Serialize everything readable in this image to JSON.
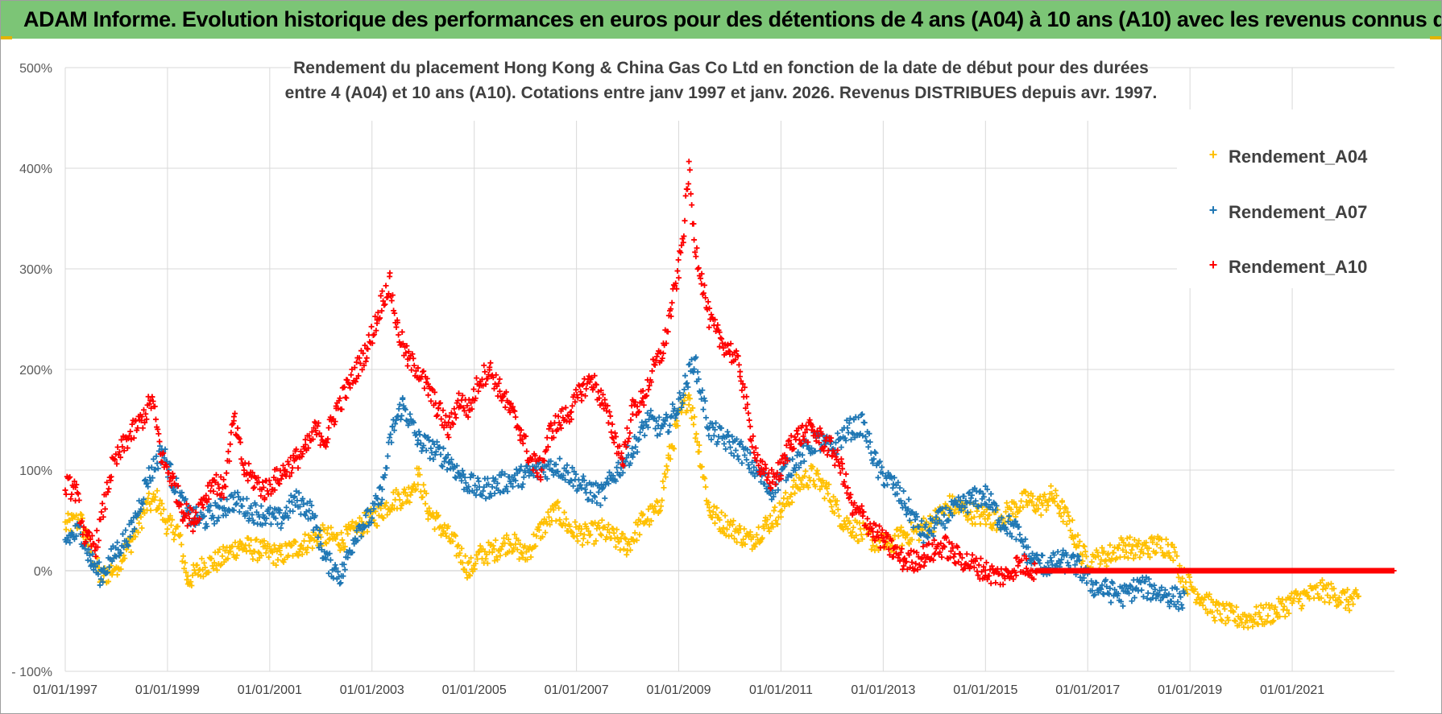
{
  "header": {
    "title": "ADAM Informe. Evolution historique des performances en euros pour des détentions de 4 ans (A04) à 10 ans (A10) avec les revenus connus distribués"
  },
  "chart_data": {
    "type": "scatter",
    "title_lines": [
      "Rendement du placement Hong Kong & China Gas Co Ltd en fonction de la date de début pour des durées",
      "entre 4 (A04) et 10 ans (A10). Cotations entre janv 1997 et janv. 2026. Revenus DISTRIBUES depuis avr. 1997."
    ],
    "xlabel": "",
    "ylabel": "",
    "xlim": [
      1997.0,
      2023.0
    ],
    "ylim": [
      -100,
      500
    ],
    "y_ticks": [
      {
        "value": 500,
        "label": "500%"
      },
      {
        "value": 400,
        "label": "400%"
      },
      {
        "value": 300,
        "label": "300%"
      },
      {
        "value": 200,
        "label": "200%"
      },
      {
        "value": 100,
        "label": "100%"
      },
      {
        "value": 0,
        "label": "0%"
      },
      {
        "value": -100,
        "label": "- 100%"
      }
    ],
    "x_ticks": [
      {
        "value": 1997,
        "label": "01/01/1997"
      },
      {
        "value": 1999,
        "label": "01/01/1999"
      },
      {
        "value": 2001,
        "label": "01/01/2001"
      },
      {
        "value": 2003,
        "label": "01/01/2003"
      },
      {
        "value": 2005,
        "label": "01/01/2005"
      },
      {
        "value": 2007,
        "label": "01/01/2007"
      },
      {
        "value": 2009,
        "label": "01/01/2009"
      },
      {
        "value": 2011,
        "label": "01/01/2011"
      },
      {
        "value": 2013,
        "label": "01/01/2013"
      },
      {
        "value": 2015,
        "label": "01/01/2015"
      },
      {
        "value": 2017,
        "label": "01/01/2017"
      },
      {
        "value": 2019,
        "label": "01/01/2019"
      },
      {
        "value": 2021,
        "label": "01/01/2021"
      }
    ],
    "grid": true,
    "legend_position": "top-right",
    "series": [
      {
        "name": "Rendement_A04",
        "color": "#ffc000",
        "x": [
          1997.0,
          1997.3,
          1997.5,
          1997.7,
          1998.0,
          1998.3,
          1998.6,
          1998.8,
          1999.0,
          1999.2,
          1999.4,
          1999.7,
          2000.0,
          2000.4,
          2000.8,
          2001.2,
          2001.6,
          2002.0,
          2002.4,
          2002.8,
          2003.1,
          2003.4,
          2003.7,
          2003.9,
          2004.1,
          2004.4,
          2004.7,
          2004.9,
          2005.1,
          2005.4,
          2005.7,
          2006.0,
          2006.3,
          2006.6,
          2006.9,
          2007.2,
          2007.5,
          2007.8,
          2008.0,
          2008.3,
          2008.6,
          2008.8,
          2009.0,
          2009.2,
          2009.4,
          2009.6,
          2009.8,
          2010.1,
          2010.4,
          2010.7,
          2011.0,
          2011.3,
          2011.6,
          2011.9,
          2012.2,
          2012.5,
          2012.8,
          2013.1,
          2013.4,
          2013.7,
          2014.0,
          2014.3,
          2014.6,
          2014.9,
          2015.2,
          2015.5,
          2015.8,
          2016.1,
          2016.3,
          2016.5,
          2016.7,
          2016.9,
          2017.1,
          2017.4,
          2017.7,
          2018.0,
          2018.3,
          2018.6,
          2018.9,
          2019.2,
          2019.5,
          2019.8,
          2020.1,
          2020.4,
          2020.7,
          2021.0,
          2021.3,
          2021.6,
          2021.9,
          2022.1,
          2022.3
        ],
        "y": [
          45,
          50,
          20,
          -8,
          5,
          30,
          65,
          70,
          45,
          40,
          -10,
          5,
          10,
          25,
          20,
          15,
          25,
          35,
          30,
          45,
          55,
          70,
          75,
          95,
          60,
          40,
          20,
          0,
          15,
          20,
          30,
          15,
          40,
          60,
          40,
          35,
          40,
          30,
          25,
          50,
          60,
          110,
          150,
          175,
          120,
          60,
          50,
          40,
          30,
          45,
          60,
          85,
          95,
          80,
          50,
          40,
          30,
          25,
          35,
          40,
          50,
          65,
          60,
          55,
          50,
          60,
          70,
          65,
          75,
          60,
          40,
          15,
          10,
          15,
          25,
          20,
          25,
          25,
          -10,
          -25,
          -40,
          -45,
          -48,
          -45,
          -40,
          -30,
          -25,
          -20,
          -25,
          -30,
          -30
        ]
      },
      {
        "name": "Rendement_A07",
        "color": "#1f77b4",
        "x": [
          1997.0,
          1997.3,
          1997.5,
          1997.7,
          1998.0,
          1998.3,
          1998.6,
          1998.9,
          1999.1,
          1999.4,
          1999.7,
          2000.0,
          2000.3,
          2000.6,
          2000.9,
          2001.2,
          2001.5,
          2001.8,
          2002.1,
          2002.4,
          2002.7,
          2003.0,
          2003.2,
          2003.4,
          2003.6,
          2003.9,
          2004.2,
          2004.5,
          2004.8,
          2005.1,
          2005.4,
          2005.7,
          2006.0,
          2006.3,
          2006.6,
          2006.9,
          2007.2,
          2007.5,
          2007.8,
          2008.1,
          2008.4,
          2008.7,
          2009.0,
          2009.3,
          2009.6,
          2009.9,
          2010.2,
          2010.5,
          2010.8,
          2011.1,
          2011.4,
          2011.7,
          2012.0,
          2012.3,
          2012.6,
          2012.9,
          2013.2,
          2013.5,
          2013.8,
          2014.1,
          2014.4,
          2014.7,
          2015.0,
          2015.3,
          2015.6,
          2015.9,
          2016.2,
          2016.5,
          2016.8,
          2017.1,
          2017.4,
          2017.7,
          2018.0,
          2018.3,
          2018.6,
          2018.9
        ],
        "y": [
          30,
          40,
          10,
          -5,
          20,
          40,
          90,
          120,
          90,
          55,
          50,
          60,
          70,
          60,
          55,
          50,
          70,
          60,
          10,
          -5,
          40,
          55,
          80,
          140,
          165,
          130,
          120,
          110,
          90,
          80,
          85,
          90,
          95,
          100,
          105,
          95,
          80,
          75,
          100,
          120,
          150,
          140,
          165,
          210,
          140,
          130,
          120,
          100,
          80,
          100,
          115,
          130,
          120,
          140,
          145,
          100,
          85,
          60,
          35,
          50,
          60,
          70,
          75,
          50,
          40,
          10,
          5,
          10,
          5,
          -15,
          -20,
          -25,
          -15,
          -20,
          -25,
          -30
        ]
      },
      {
        "name": "Rendement_A10",
        "color": "#ff0000",
        "x": [
          1997.0,
          1997.2,
          1997.4,
          1997.6,
          1997.9,
          1998.2,
          1998.5,
          1998.7,
          1998.9,
          1999.1,
          1999.3,
          1999.5,
          1999.7,
          1999.9,
          2000.1,
          2000.3,
          2000.5,
          2000.7,
          2000.9,
          2001.1,
          2001.3,
          2001.5,
          2001.7,
          2001.9,
          2002.1,
          2002.3,
          2002.5,
          2002.7,
          2002.9,
          2003.1,
          2003.2,
          2003.35,
          2003.5,
          2003.7,
          2003.9,
          2004.1,
          2004.3,
          2004.5,
          2004.7,
          2004.9,
          2005.1,
          2005.3,
          2005.5,
          2005.7,
          2005.9,
          2006.1,
          2006.3,
          2006.5,
          2006.7,
          2006.9,
          2007.1,
          2007.3,
          2007.5,
          2007.7,
          2007.9,
          2008.1,
          2008.3,
          2008.5,
          2008.7,
          2008.85,
          2009.0,
          2009.1,
          2009.2,
          2009.3,
          2009.45,
          2009.6,
          2009.8,
          2010.0,
          2010.2,
          2010.4,
          2010.6,
          2010.8,
          2011.0,
          2011.2,
          2011.4,
          2011.6,
          2011.8,
          2012.0,
          2012.2,
          2012.4,
          2012.6,
          2012.8,
          2013.0,
          2013.2,
          2013.4,
          2013.6,
          2013.8,
          2014.0,
          2014.2,
          2014.4,
          2014.6,
          2014.8,
          2015.0,
          2015.2,
          2015.4,
          2015.6,
          2015.8,
          2016.0,
          2016.5,
          2017.0,
          2017.5,
          2018.0,
          2018.5,
          2019.0,
          2019.5,
          2020.0,
          2020.5,
          2021.0,
          2021.5,
          2022.0,
          2022.5,
          2023.0
        ],
        "y": [
          85,
          80,
          30,
          25,
          100,
          130,
          150,
          170,
          110,
          90,
          60,
          50,
          70,
          90,
          80,
          150,
          100,
          90,
          80,
          90,
          100,
          110,
          120,
          140,
          130,
          160,
          180,
          200,
          220,
          250,
          270,
          285,
          240,
          210,
          200,
          180,
          160,
          140,
          170,
          160,
          190,
          200,
          180,
          160,
          140,
          110,
          100,
          140,
          150,
          160,
          180,
          190,
          170,
          140,
          110,
          160,
          170,
          200,
          220,
          260,
          300,
          340,
          400,
          330,
          290,
          250,
          230,
          220,
          200,
          140,
          100,
          90,
          100,
          130,
          135,
          140,
          130,
          120,
          100,
          60,
          55,
          40,
          30,
          20,
          10,
          10,
          15,
          20,
          25,
          15,
          10,
          5,
          0,
          -5,
          -5,
          5,
          5,
          0,
          0,
          0,
          0,
          0,
          0,
          0,
          0,
          0,
          0,
          0,
          0,
          0,
          0,
          0
        ]
      }
    ]
  }
}
